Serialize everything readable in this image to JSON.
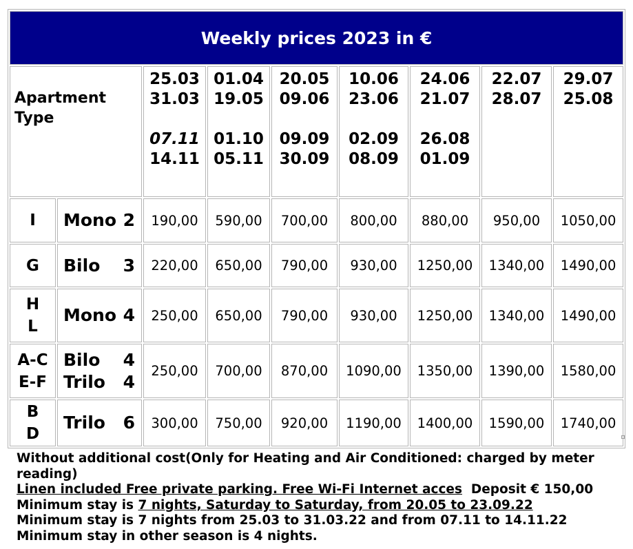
{
  "table": {
    "title": "Weekly prices 2023 in €",
    "type_header": [
      "Apartment",
      "Type"
    ],
    "periods": [
      {
        "range_a": [
          "25.03",
          "31.03"
        ],
        "range_b": [
          "07.11",
          "14.11"
        ],
        "italic_b": true
      },
      {
        "range_a": [
          "01.04",
          "19.05"
        ],
        "range_b": [
          "01.10",
          "05.11"
        ]
      },
      {
        "range_a": [
          "20.05",
          "09.06"
        ],
        "range_b": [
          "09.09",
          "30.09"
        ]
      },
      {
        "range_a": [
          "10.06",
          "23.06"
        ],
        "range_b": [
          "02.09",
          "08.09"
        ]
      },
      {
        "range_a": [
          "24.06",
          "21.07"
        ],
        "range_b": [
          "26.08",
          "01.09"
        ]
      },
      {
        "range_a": [
          "22.07",
          "28.07"
        ]
      },
      {
        "range_a": [
          "29.07",
          "25.08"
        ]
      }
    ],
    "rows": [
      {
        "codes": [
          "I"
        ],
        "names": [
          [
            "Mono",
            "2"
          ]
        ],
        "prices": [
          "190,00",
          "590,00",
          "700,00",
          "800,00",
          "880,00",
          "950,00",
          "1050,00"
        ]
      },
      {
        "codes": [
          "G"
        ],
        "names": [
          [
            "Bilo",
            "3"
          ]
        ],
        "prices": [
          "220,00",
          "650,00",
          "790,00",
          "930,00",
          "1250,00",
          "1340,00",
          "1490,00"
        ]
      },
      {
        "codes": [
          "H",
          "L"
        ],
        "names": [
          [
            "Mono",
            "4"
          ]
        ],
        "prices": [
          "250,00",
          "650,00",
          "790,00",
          "930,00",
          "1250,00",
          "1340,00",
          "1490,00"
        ]
      },
      {
        "codes": [
          "A-C",
          "E-F"
        ],
        "names": [
          [
            "Bilo",
            "4"
          ],
          [
            "Trilo",
            "4"
          ]
        ],
        "prices": [
          "250,00",
          "700,00",
          "870,00",
          "1090,00",
          "1350,00",
          "1390,00",
          "1580,00"
        ]
      },
      {
        "codes": [
          "B",
          "D"
        ],
        "names": [
          [
            "Trilo",
            "6"
          ]
        ],
        "prices": [
          "300,00",
          "750,00",
          "920,00",
          "1190,00",
          "1400,00",
          "1590,00",
          "1740,00"
        ]
      }
    ]
  },
  "notes": {
    "line1": "Without additional cost(Only for Heating and Air Conditioned: charged by meter reading)",
    "line2_underlined": "Linen included Free private parking. Free Wi-Fi Internet acces",
    "line2_rest": "  Deposit € 150,00",
    "line3_prefix": "Minimum stay is ",
    "line3_underlined": "7 nights, Saturday to Saturday, from 20.05 to 23.09.22",
    "line4": "Minimum stay is 7 nights from 25.03 to 31.03.22 and from 07.11 to 14.11.22",
    "line5": "Minimum stay in other season is 4 nights."
  }
}
